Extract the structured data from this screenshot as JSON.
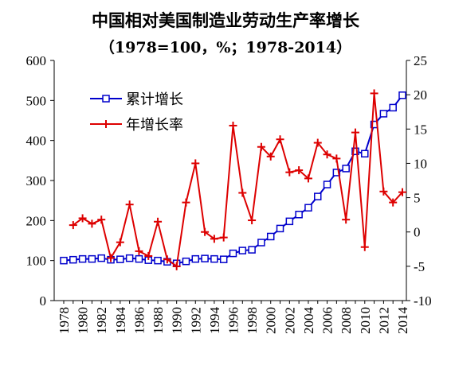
{
  "chart_data": {
    "type": "line",
    "title": "中国相对美国制造业劳动生产率增长",
    "subtitle": "（1978=100，%；1978-2014）",
    "x": [
      1978,
      1979,
      1980,
      1981,
      1982,
      1983,
      1984,
      1985,
      1986,
      1987,
      1988,
      1989,
      1990,
      1991,
      1992,
      1993,
      1994,
      1995,
      1996,
      1997,
      1998,
      1999,
      2000,
      2001,
      2002,
      2003,
      2004,
      2005,
      2006,
      2007,
      2008,
      2009,
      2010,
      2011,
      2012,
      2013,
      2014
    ],
    "x_tick_labels": [
      "1978",
      "1980",
      "1982",
      "1984",
      "1986",
      "1988",
      "1990",
      "1992",
      "1994",
      "1996",
      "1998",
      "2000",
      "2002",
      "2004",
      "2006",
      "2008",
      "2010",
      "2012",
      "2014"
    ],
    "y_left": {
      "ylim": [
        0,
        600
      ],
      "ticks": [
        "0",
        "100",
        "200",
        "300",
        "400",
        "500",
        "600"
      ]
    },
    "y_right": {
      "ylim": [
        -10,
        25
      ],
      "ticks": [
        "-10",
        "-5",
        "0",
        "5",
        "10",
        "15",
        "20",
        "25"
      ]
    },
    "series": [
      {
        "name": "累计增长",
        "axis": "left",
        "color": "#0000cc",
        "marker": "square",
        "values": [
          100,
          102,
          104,
          104,
          106,
          102,
          103,
          106,
          104,
          101,
          100,
          97,
          93,
          98,
          104,
          105,
          104,
          103,
          118,
          125,
          127,
          145,
          160,
          180,
          198,
          215,
          232,
          260,
          290,
          320,
          330,
          373,
          367,
          440,
          467,
          482,
          513
        ]
      },
      {
        "name": "年增长率",
        "axis": "right",
        "color": "#dd0000",
        "marker": "dash",
        "values": [
          null,
          1.0,
          2.0,
          1.2,
          1.8,
          -3.8,
          -1.5,
          4.0,
          -2.8,
          -3.5,
          1.5,
          -4.0,
          -5.0,
          4.3,
          10.0,
          0,
          -1.0,
          -0.8,
          15.5,
          5.7,
          1.7,
          12.4,
          11.0,
          13.5,
          8.7,
          9.0,
          7.8,
          13.0,
          11.3,
          10.7,
          1.8,
          14.5,
          -2.2,
          20.2,
          5.9,
          4.3,
          5.8
        ]
      }
    ]
  }
}
